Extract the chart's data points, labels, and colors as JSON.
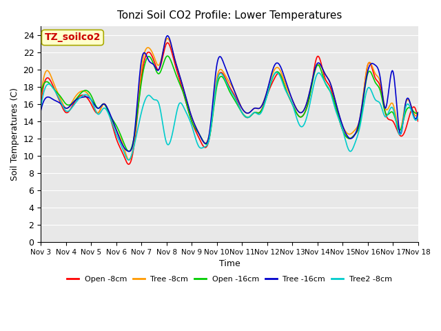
{
  "title": "Tonzi Soil CO2 Profile: Lower Temperatures",
  "xlabel": "Time",
  "ylabel": "Soil Temperatures (C)",
  "ylim": [
    0,
    25
  ],
  "yticks": [
    0,
    2,
    4,
    6,
    8,
    10,
    12,
    14,
    16,
    18,
    20,
    22,
    24
  ],
  "x_labels": [
    "Nov 3",
    "Nov 4",
    "Nov 5",
    "Nov 6",
    "Nov 7",
    "Nov 8",
    "Nov 9",
    "Nov 10",
    "Nov 11",
    "Nov 12",
    "Nov 13",
    "Nov 14",
    "Nov 15",
    "Nov 16",
    "Nov 17",
    "Nov 18"
  ],
  "annotation_text": "TZ_soilco2",
  "annotation_bg": "#ffffcc",
  "annotation_color": "#cc0000",
  "bg_color": "#e8e8e8",
  "legend_entries": [
    "Open -8cm",
    "Tree -8cm",
    "Open -16cm",
    "Tree -16cm",
    "Tree2 -8cm"
  ],
  "line_colors": [
    "#ff0000",
    "#ff9900",
    "#00cc00",
    "#0000cc",
    "#00cccc"
  ],
  "line_widths": [
    1.2,
    1.2,
    1.2,
    1.2,
    1.2
  ],
  "open8_knots_t": [
    0,
    0.3,
    0.5,
    0.8,
    1.0,
    1.3,
    1.7,
    2.0,
    2.3,
    2.5,
    2.7,
    3.0,
    3.3,
    3.5,
    3.7,
    4.0,
    4.3,
    4.5,
    4.7,
    5.0,
    5.3,
    5.5,
    5.7,
    6.0,
    6.3,
    6.5,
    6.7,
    7.0,
    7.3,
    7.5,
    7.7,
    8.0,
    8.3,
    8.5,
    8.7,
    9.0,
    9.3,
    9.5,
    9.7,
    10.0,
    10.3,
    10.5,
    10.7,
    11.0,
    11.3,
    11.5,
    11.7,
    12.0,
    12.3,
    12.5,
    12.7,
    13.0,
    13.3,
    13.5,
    13.7,
    14.0,
    14.3,
    14.5,
    14.7,
    15.0
  ],
  "open8_knots_v": [
    16,
    19,
    18,
    16,
    15,
    16,
    17,
    16,
    15,
    16,
    15,
    12,
    10,
    9,
    11,
    19,
    22,
    21,
    20,
    23,
    21,
    19,
    17,
    14,
    12,
    11,
    12,
    18.5,
    19.2,
    18,
    17,
    15,
    14.5,
    15,
    15,
    17,
    19,
    19.5,
    18,
    16,
    14.5,
    15,
    17,
    21.5,
    19,
    18,
    16,
    13,
    12,
    12.5,
    14,
    20.5,
    19,
    18,
    15,
    14,
    12.3,
    13,
    15,
    14
  ],
  "tree8_knots_t": [
    0,
    0.3,
    0.5,
    0.8,
    1.0,
    1.3,
    1.7,
    2.0,
    2.3,
    2.5,
    2.7,
    3.0,
    3.3,
    3.5,
    3.7,
    4.0,
    4.3,
    4.5,
    4.7,
    5.0,
    5.3,
    5.5,
    5.7,
    6.0,
    6.3,
    6.5,
    6.7,
    7.0,
    7.3,
    7.5,
    7.7,
    8.0,
    8.3,
    8.5,
    8.7,
    9.0,
    9.3,
    9.5,
    9.7,
    10.0,
    10.3,
    10.5,
    10.7,
    11.0,
    11.3,
    11.5,
    11.7,
    12.0,
    12.3,
    12.5,
    12.7,
    13.0,
    13.3,
    13.5,
    13.7,
    14.0,
    14.3,
    14.5,
    14.7,
    15.0
  ],
  "tree8_knots_v": [
    16.5,
    19.8,
    18.5,
    16.5,
    15.5,
    16.5,
    17.5,
    16.5,
    15,
    16,
    15,
    13,
    11,
    9.5,
    11.5,
    20,
    22.5,
    21.5,
    20.5,
    23.5,
    21.5,
    19.5,
    17.5,
    14.5,
    12.5,
    11.5,
    12.5,
    19,
    19.5,
    18.5,
    17.5,
    15.5,
    15,
    15.5,
    15.5,
    17.5,
    20,
    20,
    18.5,
    16.5,
    15,
    15.5,
    17.5,
    20.5,
    19.5,
    18.5,
    16.5,
    13.5,
    12.5,
    13,
    14.5,
    20.5,
    19.5,
    18.5,
    15.5,
    16,
    13,
    16,
    16,
    15
  ],
  "open16_knots_t": [
    0,
    0.3,
    0.5,
    0.8,
    1.0,
    1.3,
    1.7,
    2.0,
    2.3,
    2.5,
    2.7,
    3.0,
    3.3,
    3.5,
    3.7,
    4.0,
    4.3,
    4.5,
    4.7,
    5.0,
    5.3,
    5.5,
    5.7,
    6.0,
    6.3,
    6.5,
    6.7,
    7.0,
    7.3,
    7.5,
    7.7,
    8.0,
    8.3,
    8.5,
    8.7,
    9.0,
    9.3,
    9.5,
    9.7,
    10.0,
    10.3,
    10.5,
    10.7,
    11.0,
    11.3,
    11.5,
    11.7,
    12.0,
    12.3,
    12.5,
    12.7,
    13.0,
    13.3,
    13.5,
    13.7,
    14.0,
    14.3,
    14.5,
    14.7,
    15.0
  ],
  "open16_knots_v": [
    17.2,
    18.5,
    17.8,
    16.8,
    16,
    16.2,
    17.5,
    17,
    15.5,
    16,
    15,
    13.5,
    11.5,
    10.5,
    12,
    18.5,
    21.5,
    20.5,
    19.5,
    21.5,
    20,
    18.5,
    17,
    14,
    12.5,
    11.5,
    12,
    18,
    18.8,
    17.5,
    16.5,
    15,
    14.5,
    15,
    15,
    17,
    19.5,
    19.5,
    18,
    16,
    14.5,
    15,
    17,
    20.5,
    18.5,
    17.5,
    16,
    13,
    12,
    12.5,
    14,
    19.5,
    18.5,
    17.5,
    15,
    15,
    13,
    15,
    15.5,
    15
  ],
  "tree16_knots_t": [
    0,
    0.3,
    0.5,
    0.8,
    1.0,
    1.3,
    1.7,
    2.0,
    2.3,
    2.5,
    2.7,
    3.0,
    3.3,
    3.5,
    3.7,
    4.0,
    4.3,
    4.5,
    4.7,
    5.0,
    5.3,
    5.5,
    5.7,
    6.0,
    6.3,
    6.5,
    6.7,
    7.0,
    7.3,
    7.5,
    7.7,
    8.0,
    8.3,
    8.5,
    8.7,
    9.0,
    9.3,
    9.5,
    9.7,
    10.0,
    10.3,
    10.5,
    10.7,
    11.0,
    11.3,
    11.5,
    11.7,
    12.0,
    12.3,
    12.5,
    12.7,
    13.0,
    13.3,
    13.5,
    13.7,
    14.0,
    14.3,
    14.5,
    14.7,
    15.0
  ],
  "tree16_knots_v": [
    15.2,
    16.8,
    16.5,
    16,
    15.5,
    16.2,
    16.8,
    16.5,
    15.5,
    16,
    15.2,
    13,
    11,
    10.5,
    12,
    21,
    21,
    20.5,
    20,
    23.8,
    21.5,
    19.5,
    17.5,
    14.5,
    12.5,
    11.5,
    12.5,
    20.5,
    20.5,
    19,
    17.5,
    15.5,
    15,
    15.5,
    15.5,
    17.5,
    20.5,
    20.5,
    19,
    16.5,
    15,
    15.5,
    17.5,
    20.7,
    19.5,
    18.5,
    16.5,
    13.5,
    12,
    12.5,
    14.5,
    19.8,
    20.5,
    19,
    15.5,
    19.8,
    12.5,
    16,
    16,
    15
  ],
  "tree2_8_knots_t": [
    0,
    0.3,
    0.5,
    0.8,
    1.0,
    1.3,
    1.7,
    2.0,
    2.3,
    2.5,
    2.7,
    3.0,
    3.3,
    3.5,
    3.7,
    4.0,
    4.3,
    4.5,
    4.7,
    5.0,
    5.3,
    5.5,
    5.7,
    6.0,
    6.3,
    6.5,
    6.7,
    7.0,
    7.3,
    7.5,
    7.7,
    8.0,
    8.3,
    8.5,
    8.7,
    9.0,
    9.3,
    9.5,
    9.7,
    10.0,
    10.3,
    10.5,
    10.7,
    11.0,
    11.3,
    11.5,
    11.7,
    12.0,
    12.3,
    12.5,
    12.7,
    13.0,
    13.3,
    13.5,
    13.7,
    14.0,
    14.3,
    14.5,
    14.7,
    15.0
  ],
  "tree2_8_knots_v": [
    15.5,
    18.3,
    17.8,
    16.2,
    15.2,
    15.8,
    17,
    16.5,
    14.8,
    15.5,
    14.8,
    12.5,
    10.5,
    9.5,
    11,
    15,
    17,
    16.5,
    16,
    11.5,
    13.5,
    16,
    15.5,
    13.5,
    11,
    11,
    12,
    18.5,
    19,
    17.8,
    16.8,
    15,
    14.5,
    15,
    14.8,
    17,
    19.5,
    19.3,
    17.8,
    16,
    13.5,
    13.8,
    16,
    19.5,
    18.5,
    17.5,
    15.5,
    13,
    10.5,
    11.5,
    13.5,
    17.8,
    16.5,
    16,
    14.5,
    15.5,
    12.5,
    15.5,
    15.5,
    14.5
  ]
}
